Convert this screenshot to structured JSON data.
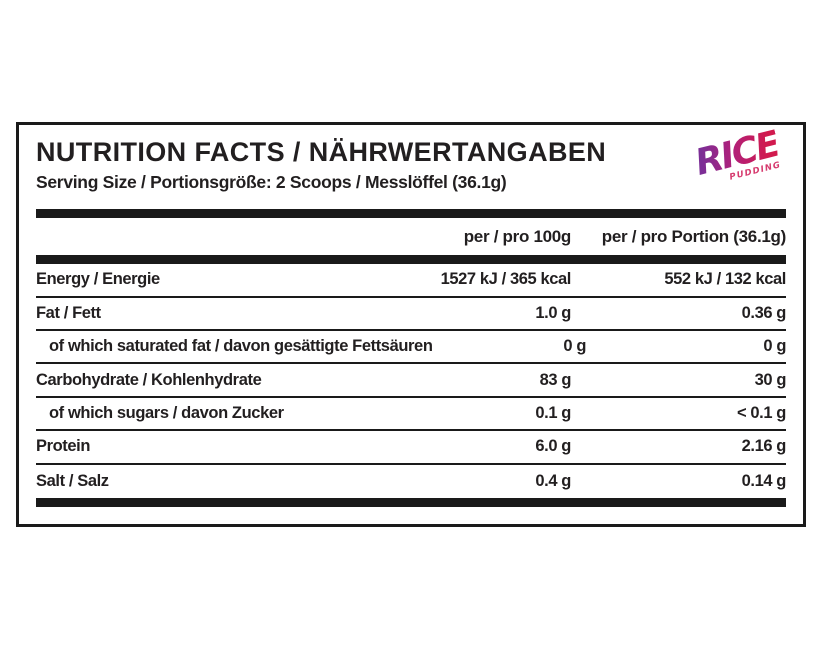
{
  "label": {
    "title": "NUTRITION FACTS / NÄHRWERTANGABEN",
    "serving_line": "Serving Size / Portionsgröße: 2 Scoops / Messlöffel (36.1g)",
    "logo": {
      "text": "RICE",
      "subtext": "PUDDING",
      "gradient_from": "#7c2e96",
      "gradient_to": "#d11a4e",
      "subtext_color": "#d63a6e"
    },
    "columns": {
      "per_100g": "per / pro 100g",
      "per_portion": "per / pro Portion (36.1g)"
    },
    "rows": [
      {
        "label": "Energy / Energie",
        "per_100g": "1527 kJ / 365 kcal",
        "per_portion": "552 kJ / 132 kcal",
        "indent": false
      },
      {
        "label": "Fat / Fett",
        "per_100g": "1.0 g",
        "per_portion": "0.36 g",
        "indent": false
      },
      {
        "label": "of which saturated fat / davon gesättigte Fettsäuren",
        "per_100g": "0 g",
        "per_portion": "0 g",
        "indent": true
      },
      {
        "label": "Carbohydrate / Kohlenhydrate",
        "per_100g": "83 g",
        "per_portion": "30 g",
        "indent": false
      },
      {
        "label": "of which sugars / davon Zucker",
        "per_100g": "0.1 g",
        "per_portion": "< 0.1 g",
        "indent": true
      },
      {
        "label": "Protein",
        "per_100g": "6.0 g",
        "per_portion": "2.16 g",
        "indent": false
      },
      {
        "label": "Salt / Salz",
        "per_100g": "0.4 g",
        "per_portion": "0.14 g",
        "indent": false
      }
    ],
    "colors": {
      "text": "#221f20",
      "rule": "#1a1a1a",
      "background": "#ffffff"
    }
  }
}
